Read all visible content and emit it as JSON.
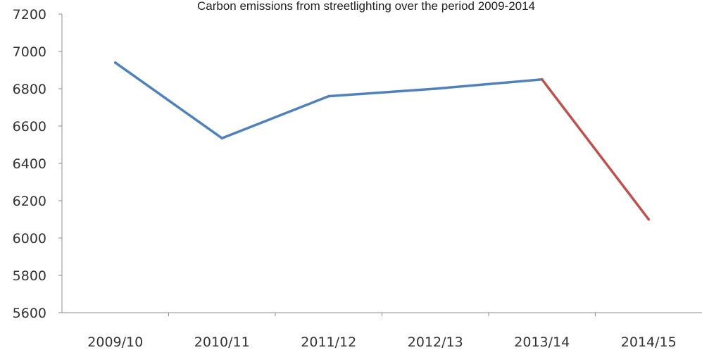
{
  "chart_data": {
    "type": "line",
    "title": "Carbon emissions from streetlighting over the period 2009-2014",
    "xlabel": "",
    "ylabel": "",
    "categories": [
      "2009/10",
      "2010/11",
      "2011/12",
      "2012/13",
      "2013/14",
      "2014/15"
    ],
    "values": [
      6940,
      6535,
      6760,
      6800,
      6850,
      6100
    ],
    "segment_colors": [
      "#4f81bd",
      "#4f81bd",
      "#4f81bd",
      "#4f81bd",
      "#c0504d"
    ],
    "ylim": [
      5600,
      7200
    ],
    "yticks": [
      5600,
      5800,
      6000,
      6200,
      6400,
      6600,
      6800,
      7000,
      7200
    ],
    "grid": false,
    "legend": "none"
  },
  "colors": {
    "axis": "#8c8c8c",
    "series_main": "#4f81bd",
    "series_last": "#c0504d"
  }
}
